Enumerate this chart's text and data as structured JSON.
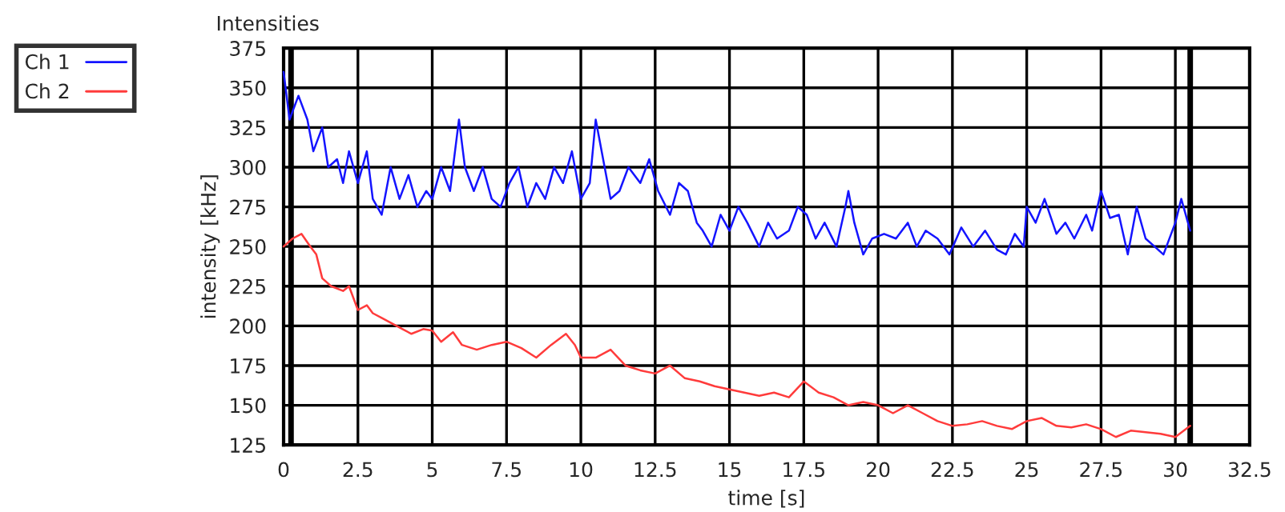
{
  "chart_data": {
    "type": "line",
    "title": "Intensities",
    "xlabel": "time [s]",
    "ylabel": "intensity [kHz]",
    "xlim": [
      0,
      32.5
    ],
    "xticks": [
      0,
      2.5,
      5,
      7.5,
      10,
      12.5,
      15,
      17.5,
      20,
      22.5,
      25,
      27.5,
      30,
      32.5
    ],
    "ylim": [
      125,
      375
    ],
    "yticks": [
      125,
      150,
      175,
      200,
      225,
      250,
      275,
      300,
      325,
      350,
      375
    ],
    "grid": true,
    "legend": "top left",
    "marker": "none",
    "line_style": "solid",
    "ref_lines": [
      {
        "axis": "x",
        "value": 0.25,
        "label": null,
        "color": "#000000"
      },
      {
        "axis": "x",
        "value": 30.5,
        "label": null,
        "color": "#000000"
      }
    ],
    "series": [
      {
        "name": "Ch 1",
        "color": "#1414ff",
        "x": [
          0,
          0.2,
          0.5,
          0.8,
          1.0,
          1.3,
          1.5,
          1.8,
          2.0,
          2.2,
          2.5,
          2.8,
          3.0,
          3.3,
          3.6,
          3.9,
          4.2,
          4.5,
          4.8,
          5.0,
          5.3,
          5.6,
          5.9,
          6.1,
          6.4,
          6.7,
          7.0,
          7.3,
          7.6,
          7.9,
          8.2,
          8.5,
          8.8,
          9.1,
          9.4,
          9.7,
          10.0,
          10.3,
          10.5,
          10.8,
          11.0,
          11.3,
          11.6,
          12.0,
          12.3,
          12.6,
          13.0,
          13.3,
          13.6,
          13.9,
          14.1,
          14.4,
          14.7,
          15.0,
          15.3,
          15.6,
          16.0,
          16.3,
          16.6,
          17.0,
          17.3,
          17.6,
          17.9,
          18.2,
          18.6,
          18.9,
          19.0,
          19.2,
          19.5,
          19.8,
          20.2,
          20.6,
          21.0,
          21.3,
          21.6,
          22.0,
          22.4,
          22.8,
          23.2,
          23.6,
          24.0,
          24.3,
          24.6,
          24.9,
          25.0,
          25.3,
          25.6,
          26.0,
          26.3,
          26.6,
          27.0,
          27.2,
          27.5,
          27.8,
          28.1,
          28.4,
          28.7,
          29.0,
          29.3,
          29.6,
          30.0,
          30.2,
          30.5
        ],
        "values": [
          360,
          330,
          345,
          330,
          310,
          325,
          300,
          305,
          290,
          310,
          290,
          310,
          280,
          270,
          300,
          280,
          295,
          275,
          285,
          280,
          300,
          285,
          330,
          300,
          285,
          300,
          280,
          275,
          290,
          300,
          275,
          290,
          280,
          300,
          290,
          310,
          280,
          290,
          330,
          300,
          280,
          285,
          300,
          290,
          305,
          285,
          270,
          290,
          285,
          265,
          260,
          250,
          270,
          260,
          275,
          265,
          250,
          265,
          255,
          260,
          275,
          270,
          255,
          265,
          250,
          275,
          285,
          265,
          245,
          255,
          258,
          255,
          265,
          250,
          260,
          255,
          245,
          262,
          250,
          260,
          248,
          245,
          258,
          250,
          275,
          265,
          280,
          258,
          265,
          255,
          270,
          260,
          285,
          268,
          270,
          245,
          275,
          255,
          250,
          245,
          265,
          280,
          260
        ]
      },
      {
        "name": "Ch 2",
        "color": "#ff3b3b",
        "x": [
          0,
          0.3,
          0.6,
          0.9,
          1.1,
          1.3,
          1.6,
          2.0,
          2.2,
          2.5,
          2.8,
          3.0,
          3.3,
          3.6,
          4.0,
          4.3,
          4.7,
          5.0,
          5.3,
          5.7,
          6.0,
          6.5,
          7.0,
          7.5,
          8.0,
          8.5,
          9.0,
          9.5,
          9.8,
          10.0,
          10.5,
          11.0,
          11.5,
          12.0,
          12.5,
          13.0,
          13.5,
          14.0,
          14.5,
          15.0,
          15.5,
          16.0,
          16.5,
          17.0,
          17.5,
          18.0,
          18.5,
          19.0,
          19.5,
          20.0,
          20.5,
          21.0,
          21.5,
          22.0,
          22.5,
          23.0,
          23.5,
          24.0,
          24.5,
          25.0,
          25.5,
          26.0,
          26.5,
          27.0,
          27.5,
          28.0,
          28.5,
          29.0,
          29.5,
          30.0,
          30.5
        ],
        "values": [
          250,
          255,
          258,
          250,
          245,
          230,
          225,
          222,
          225,
          210,
          213,
          208,
          205,
          202,
          198,
          195,
          198,
          197,
          190,
          196,
          188,
          185,
          188,
          190,
          186,
          180,
          188,
          195,
          188,
          180,
          180,
          185,
          175,
          172,
          170,
          175,
          167,
          165,
          162,
          160,
          158,
          156,
          158,
          155,
          165,
          158,
          155,
          150,
          152,
          150,
          145,
          150,
          145,
          140,
          137,
          138,
          140,
          137,
          135,
          140,
          142,
          137,
          136,
          138,
          135,
          130,
          134,
          133,
          132,
          130,
          137
        ]
      }
    ]
  }
}
